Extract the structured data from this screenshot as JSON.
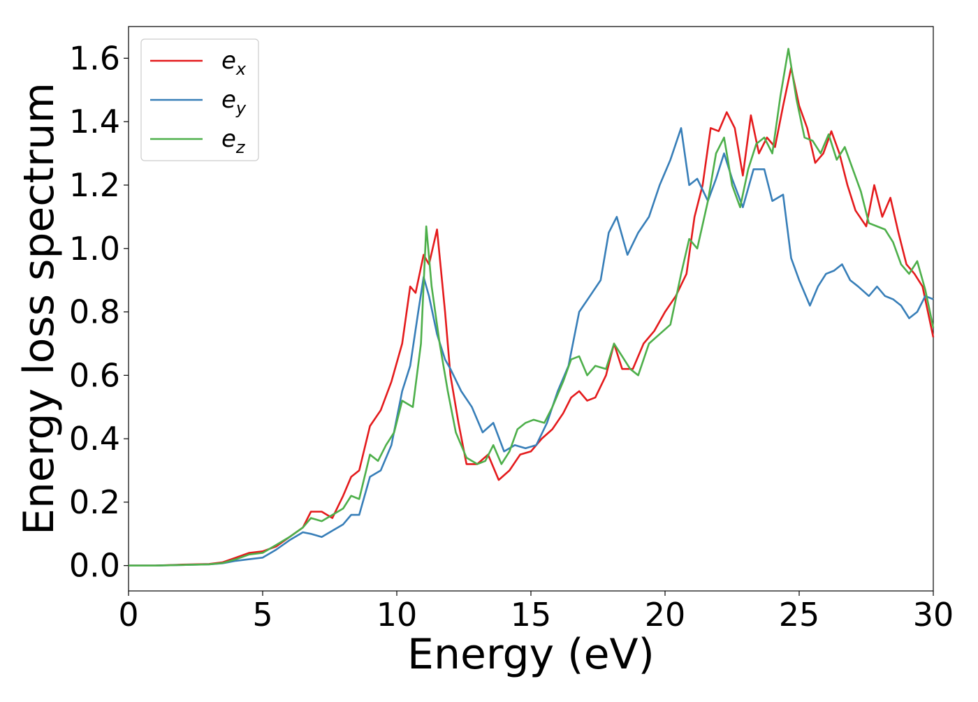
{
  "chart_data": {
    "type": "line",
    "xlabel": "Energy (eV)",
    "ylabel": "Energy loss spectrum",
    "xlim": [
      0,
      30
    ],
    "ylim": [
      -0.08,
      1.7
    ],
    "xticks": [
      0,
      5,
      10,
      15,
      20,
      25,
      30
    ],
    "xtick_labels": [
      "0",
      "5",
      "10",
      "15",
      "20",
      "25",
      "30"
    ],
    "yticks": [
      0.0,
      0.2,
      0.4,
      0.6,
      0.8,
      1.0,
      1.2,
      1.4,
      1.6
    ],
    "ytick_labels": [
      "0.0",
      "0.2",
      "0.4",
      "0.6",
      "0.8",
      "1.0",
      "1.2",
      "1.4",
      "1.6"
    ],
    "grid": false,
    "legend_position": "top-left",
    "series": [
      {
        "name": "e_x",
        "name_base": "e",
        "name_sub": "x",
        "color": "#e41a1c",
        "x": [
          0,
          1,
          2,
          3,
          3.5,
          4,
          4.5,
          5,
          5.5,
          6,
          6.5,
          6.8,
          7.2,
          7.6,
          8,
          8.3,
          8.6,
          9,
          9.4,
          9.8,
          10.2,
          10.5,
          10.7,
          11,
          11.2,
          11.5,
          11.8,
          12,
          12.3,
          12.6,
          13,
          13.4,
          13.8,
          14.2,
          14.6,
          15,
          15.4,
          15.8,
          16.2,
          16.5,
          16.8,
          17.1,
          17.4,
          17.8,
          18.1,
          18.4,
          18.8,
          19.2,
          19.6,
          20,
          20.4,
          20.8,
          21.1,
          21.4,
          21.7,
          22,
          22.3,
          22.6,
          22.9,
          23.2,
          23.5,
          23.8,
          24.1,
          24.4,
          24.7,
          25,
          25.3,
          25.6,
          25.9,
          26.2,
          26.5,
          26.8,
          27.1,
          27.5,
          27.8,
          28.1,
          28.4,
          28.7,
          29,
          29.3,
          29.6,
          30
        ],
        "y": [
          0,
          0,
          0.003,
          0.005,
          0.01,
          0.025,
          0.04,
          0.045,
          0.06,
          0.09,
          0.12,
          0.17,
          0.17,
          0.15,
          0.22,
          0.28,
          0.3,
          0.44,
          0.49,
          0.58,
          0.7,
          0.88,
          0.86,
          0.98,
          0.95,
          1.06,
          0.8,
          0.6,
          0.45,
          0.32,
          0.32,
          0.35,
          0.27,
          0.3,
          0.35,
          0.36,
          0.4,
          0.43,
          0.48,
          0.53,
          0.55,
          0.52,
          0.53,
          0.6,
          0.7,
          0.62,
          0.62,
          0.7,
          0.74,
          0.8,
          0.85,
          0.92,
          1.1,
          1.2,
          1.38,
          1.37,
          1.43,
          1.38,
          1.23,
          1.42,
          1.3,
          1.35,
          1.32,
          1.45,
          1.57,
          1.45,
          1.38,
          1.27,
          1.3,
          1.37,
          1.3,
          1.2,
          1.12,
          1.07,
          1.2,
          1.1,
          1.16,
          1.05,
          0.95,
          0.92,
          0.88,
          0.72
        ]
      },
      {
        "name": "e_y",
        "name_base": "e",
        "name_sub": "y",
        "color": "#377eb8",
        "x": [
          0,
          1,
          2,
          3,
          3.5,
          4,
          4.5,
          5,
          5.5,
          6,
          6.5,
          6.8,
          7.2,
          7.6,
          8,
          8.3,
          8.6,
          9,
          9.4,
          9.8,
          10.2,
          10.5,
          10.8,
          11,
          11.2,
          11.5,
          11.8,
          12,
          12.4,
          12.8,
          13.2,
          13.6,
          14,
          14.4,
          14.8,
          15.2,
          15.6,
          16,
          16.4,
          16.8,
          17.2,
          17.6,
          17.9,
          18.2,
          18.6,
          19,
          19.4,
          19.8,
          20.2,
          20.6,
          20.9,
          21.2,
          21.6,
          21.9,
          22.2,
          22.5,
          22.9,
          23.3,
          23.7,
          24,
          24.4,
          24.7,
          25,
          25.4,
          25.7,
          26,
          26.3,
          26.6,
          26.9,
          27.2,
          27.6,
          27.9,
          28.2,
          28.5,
          28.8,
          29.1,
          29.4,
          29.7,
          30
        ],
        "y": [
          0,
          0,
          0.002,
          0.004,
          0.007,
          0.015,
          0.02,
          0.025,
          0.05,
          0.08,
          0.105,
          0.1,
          0.09,
          0.11,
          0.13,
          0.16,
          0.16,
          0.28,
          0.3,
          0.38,
          0.55,
          0.63,
          0.8,
          0.91,
          0.85,
          0.73,
          0.65,
          0.62,
          0.55,
          0.5,
          0.42,
          0.45,
          0.36,
          0.38,
          0.37,
          0.38,
          0.45,
          0.55,
          0.63,
          0.8,
          0.85,
          0.9,
          1.05,
          1.1,
          0.98,
          1.05,
          1.1,
          1.2,
          1.28,
          1.38,
          1.2,
          1.22,
          1.15,
          1.22,
          1.3,
          1.22,
          1.13,
          1.25,
          1.25,
          1.15,
          1.17,
          0.97,
          0.9,
          0.82,
          0.88,
          0.92,
          0.93,
          0.95,
          0.9,
          0.88,
          0.85,
          0.88,
          0.85,
          0.84,
          0.82,
          0.78,
          0.8,
          0.85,
          0.84
        ]
      },
      {
        "name": "e_z",
        "name_base": "e",
        "name_sub": "z",
        "color": "#4daf4a",
        "x": [
          0,
          1,
          2,
          3,
          3.5,
          4,
          4.5,
          5,
          5.5,
          6,
          6.5,
          6.8,
          7.2,
          7.6,
          8,
          8.3,
          8.6,
          9,
          9.3,
          9.6,
          9.9,
          10.2,
          10.6,
          10.9,
          11.1,
          11.3,
          11.6,
          11.9,
          12.2,
          12.6,
          13,
          13.3,
          13.6,
          13.9,
          14.2,
          14.5,
          14.8,
          15.1,
          15.5,
          15.8,
          16.2,
          16.5,
          16.8,
          17.1,
          17.4,
          17.8,
          18.1,
          18.4,
          18.7,
          19,
          19.4,
          19.8,
          20.2,
          20.6,
          20.9,
          21.2,
          21.6,
          21.9,
          22.2,
          22.5,
          22.8,
          23.1,
          23.4,
          23.7,
          24,
          24.3,
          24.6,
          24.9,
          25.2,
          25.5,
          25.8,
          26.1,
          26.4,
          26.7,
          27,
          27.3,
          27.6,
          27.9,
          28.2,
          28.5,
          28.8,
          29.1,
          29.4,
          29.7,
          30
        ],
        "y": [
          0,
          0,
          0.002,
          0.004,
          0.008,
          0.02,
          0.035,
          0.04,
          0.065,
          0.09,
          0.12,
          0.15,
          0.14,
          0.16,
          0.18,
          0.22,
          0.21,
          0.35,
          0.33,
          0.38,
          0.42,
          0.52,
          0.5,
          0.7,
          1.07,
          0.88,
          0.7,
          0.55,
          0.42,
          0.34,
          0.32,
          0.33,
          0.38,
          0.32,
          0.36,
          0.43,
          0.45,
          0.46,
          0.45,
          0.5,
          0.58,
          0.65,
          0.66,
          0.6,
          0.63,
          0.62,
          0.7,
          0.66,
          0.62,
          0.6,
          0.7,
          0.73,
          0.76,
          0.92,
          1.03,
          1.0,
          1.15,
          1.3,
          1.35,
          1.2,
          1.13,
          1.25,
          1.33,
          1.35,
          1.3,
          1.48,
          1.63,
          1.47,
          1.35,
          1.34,
          1.3,
          1.36,
          1.28,
          1.32,
          1.25,
          1.18,
          1.08,
          1.07,
          1.06,
          1.02,
          0.95,
          0.92,
          0.96,
          0.87,
          0.75
        ]
      }
    ]
  }
}
